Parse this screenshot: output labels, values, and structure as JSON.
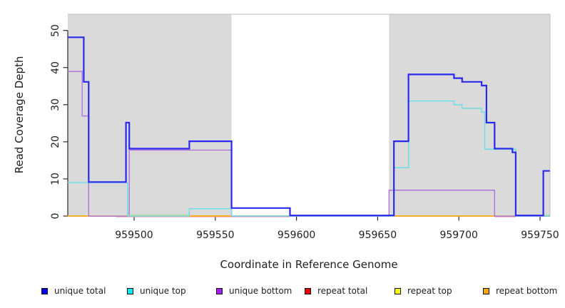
{
  "figure": {
    "background": "#FFFFFF"
  },
  "y_axis": {
    "title": "Read Coverage Depth",
    "tick_labels": [
      "0",
      "10",
      "20",
      "30",
      "40",
      "50"
    ],
    "tick_values": [
      0,
      10,
      20,
      30,
      40,
      50
    ]
  },
  "x_axis": {
    "title": "Coordinate in Reference Genome",
    "tick_labels": [
      "959500",
      "959550",
      "959600",
      "959650",
      "959700",
      "959750"
    ],
    "tick_values": [
      959500,
      959550,
      959600,
      959650,
      959700,
      959750
    ]
  },
  "legend": {
    "items": [
      {
        "label": "unique total",
        "color": "#0000EE"
      },
      {
        "label": "unique top",
        "color": "#00EEEE"
      },
      {
        "label": "unique bottom",
        "color": "#A020F0"
      },
      {
        "label": "repeat total",
        "color": "#EE0000"
      },
      {
        "label": "repeat top",
        "color": "#FFFF00"
      },
      {
        "label": "repeat bottom",
        "color": "#FFA500"
      }
    ]
  },
  "colors": {
    "region_fill": "#DADADA",
    "region_border": "#BDBDBD",
    "axis": "#2B2B2B",
    "text": "#1F1F1F",
    "blend_green": "#A6DC8C",
    "repeat_total_line": "#F29CAC"
  },
  "chart_data": {
    "type": "line",
    "title": "",
    "xlabel": "Coordinate in Reference Genome",
    "ylabel": "Read Coverage Depth",
    "xlim": [
      959459,
      959756
    ],
    "ylim": [
      0,
      52
    ],
    "grid": false,
    "legend_position": "bottom",
    "repeat_regions": [
      [
        959459,
        959560
      ],
      [
        959657,
        959756
      ]
    ],
    "series": [
      {
        "name": "repeat top",
        "color": "#FFFF00",
        "width": 1.2,
        "dy": -0.1,
        "steps": [
          [
            959459,
            959756,
            0
          ]
        ]
      },
      {
        "name": "repeat total",
        "color": "#F29CAC",
        "width": 1.2,
        "dy": 1.0,
        "steps": [
          [
            959489,
            959596,
            0
          ],
          [
            959722,
            959735,
            0
          ]
        ]
      },
      {
        "name": "repeat bottom",
        "color": "#FFA500",
        "width": 1.4,
        "dy": 0,
        "steps": [
          [
            959459,
            959472,
            0
          ],
          [
            959534,
            959560,
            0
          ],
          [
            959660,
            959722,
            0
          ]
        ]
      },
      {
        "name": "unique bottom",
        "color": "#AE6BDC",
        "width": 1.3,
        "dy": 0.2,
        "dy_map": {
          "18": 1.2
        },
        "steps": [
          [
            959459,
            959468,
            39
          ],
          [
            959468,
            959472,
            27
          ],
          [
            959472,
            959497,
            0
          ],
          [
            959497,
            959560,
            18
          ],
          [
            959560,
            959657,
            0
          ],
          [
            959657,
            959722,
            7
          ],
          [
            959722,
            959756,
            0
          ]
        ]
      },
      {
        "name": "unique top",
        "color": "#5FE0EA",
        "width": 1.3,
        "dy": 0,
        "steps": [
          [
            959459,
            959496,
            9
          ],
          [
            959496,
            959534,
            0
          ],
          [
            959534,
            959560,
            2
          ],
          [
            959560,
            959660,
            0
          ],
          [
            959660,
            959669,
            13
          ],
          [
            959669,
            959697,
            31
          ],
          [
            959697,
            959702,
            30
          ],
          [
            959702,
            959714,
            29
          ],
          [
            959714,
            959716,
            28
          ],
          [
            959716,
            959735,
            18
          ],
          [
            959735,
            959756,
            0
          ]
        ]
      },
      {
        "name": "unique total",
        "color": "#2A2AEE",
        "width": 2.2,
        "dy": -0.8,
        "steps": [
          [
            959459,
            959469,
            48
          ],
          [
            959469,
            959472,
            36
          ],
          [
            959472,
            959495,
            9
          ],
          [
            959495,
            959497,
            25
          ],
          [
            959497,
            959534,
            18
          ],
          [
            959534,
            959560,
            20
          ],
          [
            959560,
            959596,
            2
          ],
          [
            959596,
            959660,
            0
          ],
          [
            959660,
            959669,
            20
          ],
          [
            959669,
            959697,
            38
          ],
          [
            959697,
            959702,
            37
          ],
          [
            959702,
            959714,
            36
          ],
          [
            959714,
            959717,
            35
          ],
          [
            959717,
            959722,
            25
          ],
          [
            959722,
            959733,
            18
          ],
          [
            959733,
            959735,
            17
          ],
          [
            959735,
            959752,
            0
          ],
          [
            959752,
            959756,
            12
          ]
        ]
      }
    ],
    "overlap_marks": {
      "comment_color": "#A6DC8C",
      "ranges": [
        [
          959496,
          959534
        ],
        [
          959657,
          959660
        ],
        [
          959752,
          959756
        ]
      ]
    }
  }
}
